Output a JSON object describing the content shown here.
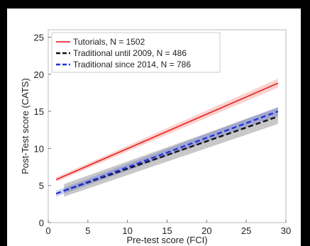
{
  "chart_data": {
    "type": "line",
    "xlabel": "Pre-test score (FCI)",
    "ylabel": "Post-Test score (CATS)",
    "xlim": [
      0,
      30
    ],
    "ylim": [
      0,
      26
    ],
    "xticks": [
      0,
      5,
      10,
      15,
      20,
      25,
      30
    ],
    "yticks": [
      0,
      5,
      10,
      15,
      20,
      25
    ],
    "grid": false,
    "legend_placement": "top-left",
    "series": [
      {
        "name": "Tutorials, N = 1502",
        "color": "#e8312a",
        "style": "solid",
        "x": [
          1,
          29
        ],
        "y": [
          5.8,
          18.8
        ],
        "band_lower": [
          5.5,
          18.2
        ],
        "band_upper": [
          6.1,
          19.4
        ]
      },
      {
        "name": "Traditional until 2009, N = 486",
        "color": "#111111",
        "style": "dashed",
        "x": [
          2,
          29
        ],
        "y": [
          4.3,
          14.3
        ],
        "band_lower": [
          3.5,
          13.3
        ],
        "band_upper": [
          5.2,
          15.5
        ]
      },
      {
        "name": "Traditional since 2014, N = 786",
        "color": "#2233dd",
        "style": "dashed",
        "x": [
          1,
          29
        ],
        "y": [
          3.9,
          15.0
        ],
        "band_lower": [
          3.5,
          14.4
        ],
        "band_upper": [
          4.3,
          15.6
        ]
      }
    ]
  }
}
